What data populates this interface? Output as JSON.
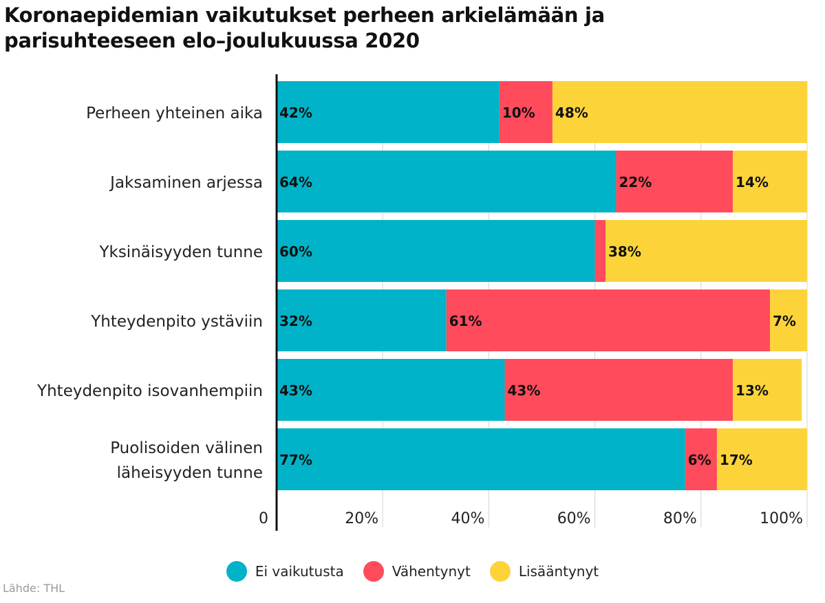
{
  "title_lines": [
    "Koronaepidemian vaikutukset perheen arkielämään ja",
    "parisuhteeseen elo–joulukuussa 2020"
  ],
  "source": "Lähde: THL",
  "colors": {
    "ei": "#00b3c8",
    "vah": "#ff4b5c",
    "lis": "#fcd43a"
  },
  "chart_data": {
    "type": "bar",
    "orientation": "horizontal",
    "stacked": true,
    "title": "Koronaepidemian vaikutukset perheen arkielämään ja parisuhteeseen elo–joulukuussa 2020",
    "categories": [
      "Perheen yhteinen aika",
      "Jaksaminen arjessa",
      "Yksinäisyyden tunne",
      "Yhteydenpito ystäviin",
      "Yhteydenpito isovanhempiin",
      "Puolisoiden välinen läheisyyden tunne"
    ],
    "category_lines": [
      [
        "Perheen yhteinen aika"
      ],
      [
        "Jaksaminen arjessa"
      ],
      [
        "Yksinäisyyden tunne"
      ],
      [
        "Yhteydenpito ystäviin"
      ],
      [
        "Yhteydenpito isovanhempiin"
      ],
      [
        "Puolisoiden välinen",
        "läheisyyden tunne"
      ]
    ],
    "series": [
      {
        "name": "Ei vaikutusta",
        "color": "#00b3c8",
        "values": [
          42,
          64,
          60,
          32,
          43,
          77
        ]
      },
      {
        "name": "Vähentynyt",
        "color": "#ff4b5c",
        "values": [
          10,
          22,
          2,
          61,
          43,
          6
        ]
      },
      {
        "name": "Lisääntynyt",
        "color": "#fcd43a",
        "values": [
          48,
          14,
          38,
          7,
          13,
          17
        ]
      }
    ],
    "data_labels": [
      [
        "42%",
        "10%",
        "48%"
      ],
      [
        "64%",
        "22%",
        "14%"
      ],
      [
        "60%",
        "",
        "38%"
      ],
      [
        "32%",
        "61%",
        "7%"
      ],
      [
        "43%",
        "43%",
        "13%"
      ],
      [
        "77%",
        "6%",
        "17%"
      ]
    ],
    "xlim": [
      0,
      100
    ],
    "x_ticks": [
      0,
      20,
      40,
      60,
      80,
      100
    ],
    "x_tick_labels": [
      "0",
      "20%",
      "40%",
      "60%",
      "80%",
      "100%"
    ],
    "grid": true,
    "legend": "bottom"
  }
}
